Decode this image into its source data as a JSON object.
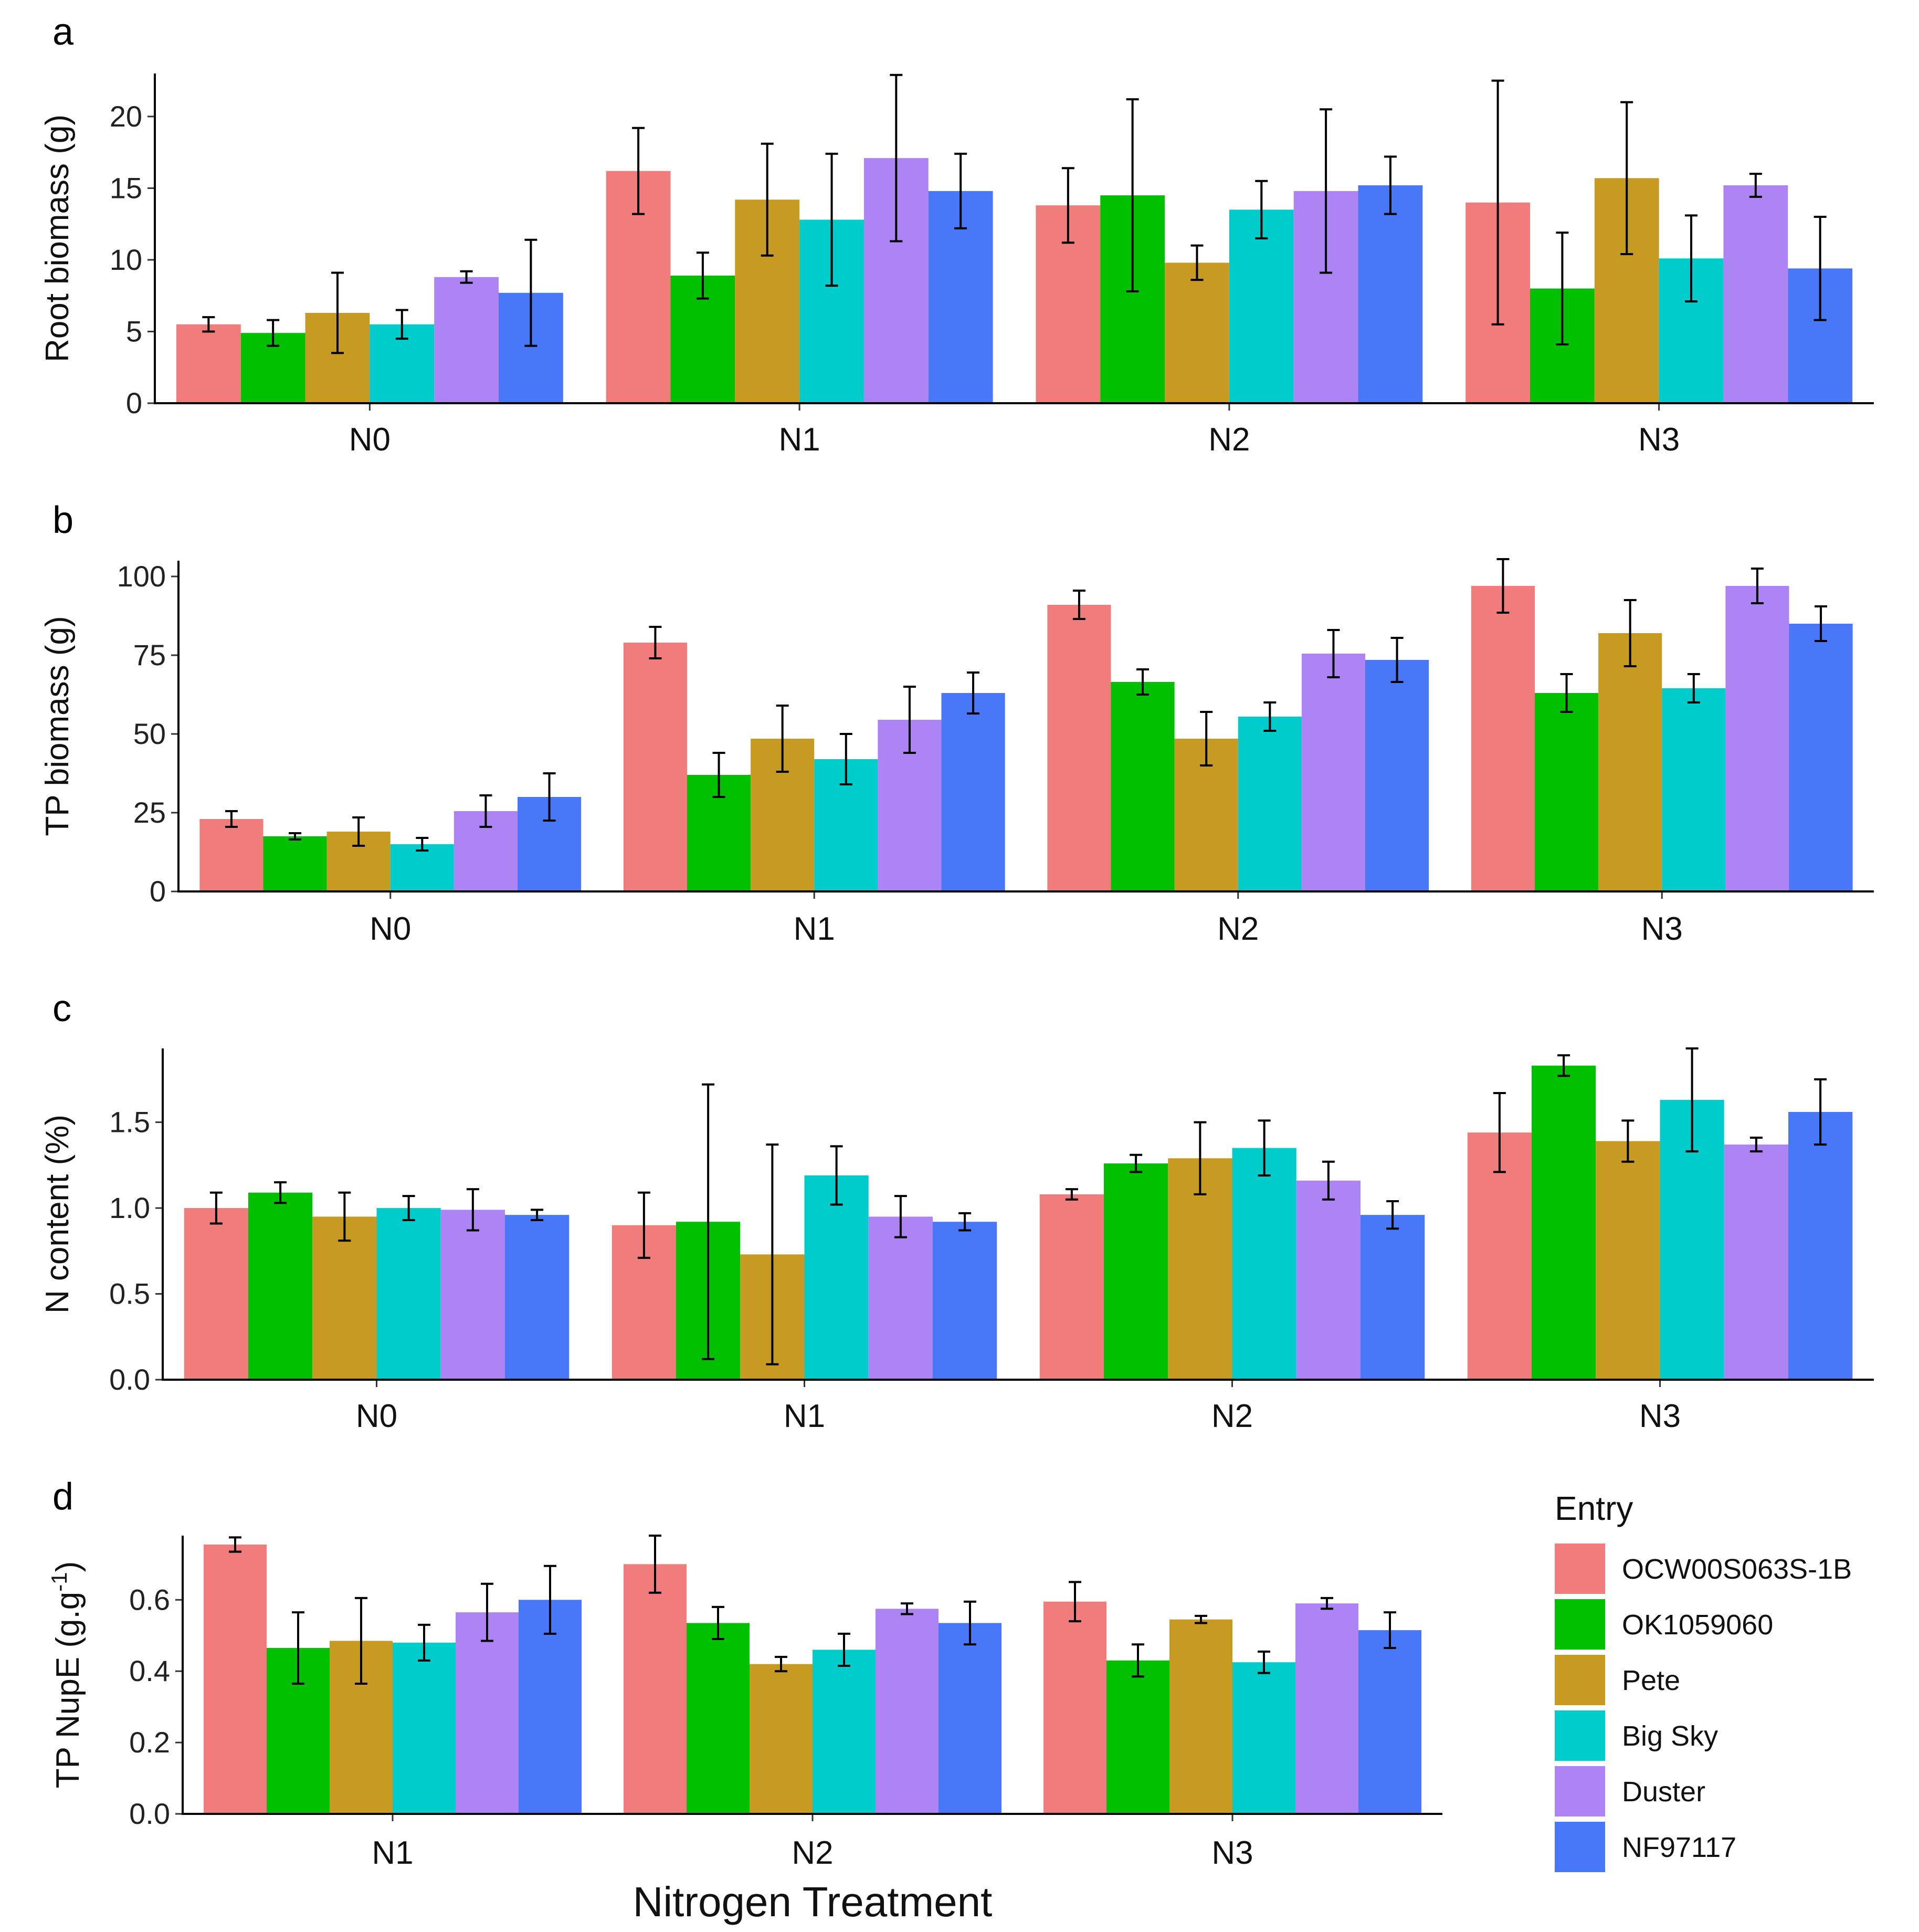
{
  "figure": {
    "x_title": "Nitrogen Treatment",
    "legend": {
      "title": "Entry",
      "entries": [
        {
          "name": "OCW00S063S-1B",
          "color": "#F07D7C"
        },
        {
          "name": "OK1059060",
          "color": "#00C000"
        },
        {
          "name": "Pete",
          "color": "#C79A22"
        },
        {
          "name": "Big Sky",
          "color": "#00CCCC"
        },
        {
          "name": "Duster",
          "color": "#AE84F4"
        },
        {
          "name": "NF97117",
          "color": "#4877F8"
        }
      ]
    }
  },
  "chart_data": [
    {
      "type": "bar",
      "panel": "a",
      "ylabel": "Root biomass (g)",
      "ylim": [
        0,
        23
      ],
      "yticks": [
        0,
        5,
        10,
        15,
        20
      ],
      "ytick_labels": [
        "0",
        "5",
        "10",
        "15",
        "20"
      ],
      "categories": [
        "N0",
        "N1",
        "N2",
        "N3"
      ],
      "series": [
        {
          "name": "OCW00S063S-1B",
          "values": [
            5.5,
            16.2,
            13.8,
            14.0
          ],
          "err": [
            0.5,
            3.0,
            2.6,
            8.5
          ]
        },
        {
          "name": "OK1059060",
          "values": [
            4.9,
            8.9,
            14.5,
            8.0
          ],
          "err": [
            0.9,
            1.6,
            6.7,
            3.9
          ]
        },
        {
          "name": "Pete",
          "values": [
            6.3,
            14.2,
            9.8,
            15.7
          ],
          "err": [
            2.8,
            3.9,
            1.2,
            5.3
          ]
        },
        {
          "name": "Big Sky",
          "values": [
            5.5,
            12.8,
            13.5,
            10.1
          ],
          "err": [
            1.0,
            4.6,
            2.0,
            3.0
          ]
        },
        {
          "name": "Duster",
          "values": [
            8.8,
            17.1,
            14.8,
            15.2
          ],
          "err": [
            0.4,
            5.8,
            5.7,
            0.8
          ]
        },
        {
          "name": "NF97117",
          "values": [
            7.7,
            14.8,
            15.2,
            9.4
          ],
          "err": [
            3.7,
            2.6,
            2.0,
            3.6
          ]
        }
      ]
    },
    {
      "type": "bar",
      "panel": "b",
      "ylabel": "TP biomass (g)",
      "ylim": [
        0,
        105
      ],
      "yticks": [
        0,
        25,
        50,
        75,
        100
      ],
      "ytick_labels": [
        "0",
        "25",
        "50",
        "75",
        "100"
      ],
      "categories": [
        "N0",
        "N1",
        "N2",
        "N3"
      ],
      "series": [
        {
          "name": "OCW00S063S-1B",
          "values": [
            23,
            79,
            91,
            97
          ],
          "err": [
            2.5,
            5,
            4.5,
            8.5
          ]
        },
        {
          "name": "OK1059060",
          "values": [
            17.5,
            37,
            66.5,
            63
          ],
          "err": [
            1.0,
            7,
            4,
            6
          ]
        },
        {
          "name": "Pete",
          "values": [
            19,
            48.5,
            48.5,
            82
          ],
          "err": [
            4.5,
            10.5,
            8.5,
            10.5
          ]
        },
        {
          "name": "Big Sky",
          "values": [
            15,
            42,
            55.5,
            64.5
          ],
          "err": [
            2.0,
            8,
            4.5,
            4.5
          ]
        },
        {
          "name": "Duster",
          "values": [
            25.5,
            54.5,
            75.5,
            97
          ],
          "err": [
            5.0,
            10.5,
            7.5,
            5.5
          ]
        },
        {
          "name": "NF97117",
          "values": [
            30,
            63,
            73.5,
            85
          ],
          "err": [
            7.5,
            6.5,
            7,
            5.5
          ]
        }
      ]
    },
    {
      "type": "bar",
      "panel": "c",
      "ylabel": "N content (%)",
      "ylim": [
        0,
        1.93
      ],
      "yticks": [
        0,
        0.5,
        1.0,
        1.5
      ],
      "ytick_labels": [
        "0.0",
        "0.5",
        "1.0",
        "1.5"
      ],
      "categories": [
        "N0",
        "N1",
        "N2",
        "N3"
      ],
      "series": [
        {
          "name": "OCW00S063S-1B",
          "values": [
            1.0,
            0.9,
            1.08,
            1.44
          ],
          "err": [
            0.09,
            0.19,
            0.03,
            0.23
          ]
        },
        {
          "name": "OK1059060",
          "values": [
            1.09,
            0.92,
            1.26,
            1.83
          ],
          "err": [
            0.06,
            0.8,
            0.05,
            0.06
          ]
        },
        {
          "name": "Pete",
          "values": [
            0.95,
            0.73,
            1.29,
            1.39
          ],
          "err": [
            0.14,
            0.64,
            0.21,
            0.12
          ]
        },
        {
          "name": "Big Sky",
          "values": [
            1.0,
            1.19,
            1.35,
            1.63
          ],
          "err": [
            0.07,
            0.17,
            0.16,
            0.3
          ]
        },
        {
          "name": "Duster",
          "values": [
            0.99,
            0.95,
            1.16,
            1.37
          ],
          "err": [
            0.12,
            0.12,
            0.11,
            0.04
          ]
        },
        {
          "name": "NF97117",
          "values": [
            0.96,
            0.92,
            0.96,
            1.56
          ],
          "err": [
            0.03,
            0.05,
            0.08,
            0.19
          ]
        }
      ]
    },
    {
      "type": "bar",
      "panel": "d",
      "ylabel": "TP NupE (g.g",
      "ylabel_sup": "-1",
      "ylabel_end": ")",
      "ylim": [
        0,
        0.78
      ],
      "yticks": [
        0,
        0.2,
        0.4,
        0.6
      ],
      "ytick_labels": [
        "0.0",
        "0.2",
        "0.4",
        "0.6"
      ],
      "categories": [
        "N1",
        "N2",
        "N3"
      ],
      "series": [
        {
          "name": "OCW00S063S-1B",
          "values": [
            0.755,
            0.7,
            0.595
          ],
          "err": [
            0.02,
            0.08,
            0.055
          ]
        },
        {
          "name": "OK1059060",
          "values": [
            0.465,
            0.535,
            0.43
          ],
          "err": [
            0.1,
            0.045,
            0.045
          ]
        },
        {
          "name": "Pete",
          "values": [
            0.485,
            0.42,
            0.545
          ],
          "err": [
            0.12,
            0.02,
            0.01
          ]
        },
        {
          "name": "Big Sky",
          "values": [
            0.48,
            0.46,
            0.425
          ],
          "err": [
            0.05,
            0.045,
            0.03
          ]
        },
        {
          "name": "Duster",
          "values": [
            0.565,
            0.575,
            0.59
          ],
          "err": [
            0.08,
            0.015,
            0.015
          ]
        },
        {
          "name": "NF97117",
          "values": [
            0.6,
            0.535,
            0.515
          ],
          "err": [
            0.095,
            0.06,
            0.05
          ]
        }
      ]
    }
  ]
}
